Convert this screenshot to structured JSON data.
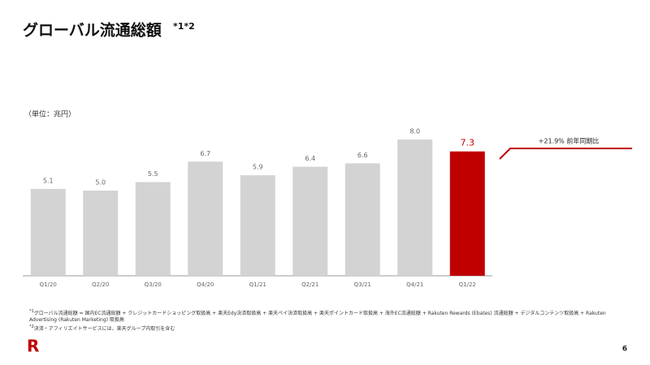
{
  "chart_data": {
    "type": "bar",
    "title": "グローバル流通総額",
    "title_note": "*1*2",
    "unit_label": "（単位：兆円）",
    "categories": [
      "Q1/20",
      "Q2/20",
      "Q3/20",
      "Q4/20",
      "Q1/21",
      "Q2/21",
      "Q3/21",
      "Q4/21",
      "Q1/22"
    ],
    "values": [
      5.1,
      5.0,
      5.5,
      6.7,
      5.9,
      6.4,
      6.6,
      8.0,
      7.3
    ],
    "value_labels": [
      "5.1",
      "5.0",
      "5.5",
      "6.7",
      "5.9",
      "6.4",
      "6.6",
      "8.0",
      "7.3"
    ],
    "colors": [
      "#d3d3d3",
      "#d3d3d3",
      "#d3d3d3",
      "#d3d3d3",
      "#d3d3d3",
      "#d3d3d3",
      "#d3d3d3",
      "#d3d3d3",
      "#c00000"
    ],
    "annotation": "+21.9% 前年同期比"
  },
  "footnotes": [
    {
      "marker": "*1",
      "text": "グローバル流通総額 = 国内EC流通総額 + クレジットカードショッピング取扱高 + 楽天Edy決済取扱高 + 楽天ペイ決済取扱高 + 楽天ポイントカード取扱高 + 海外EC流通総額 + Rakuten Rewards (Ebates) 流通総額 + デジタルコンテンツ取扱高 + Rakuten Advertising (Rakuten Marketing) 取扱高"
    },
    {
      "marker": "*2",
      "text": "決済・アフィリエイトサービスには、楽天グループ内取引を含む"
    }
  ],
  "logo": "R",
  "page_number": "6"
}
